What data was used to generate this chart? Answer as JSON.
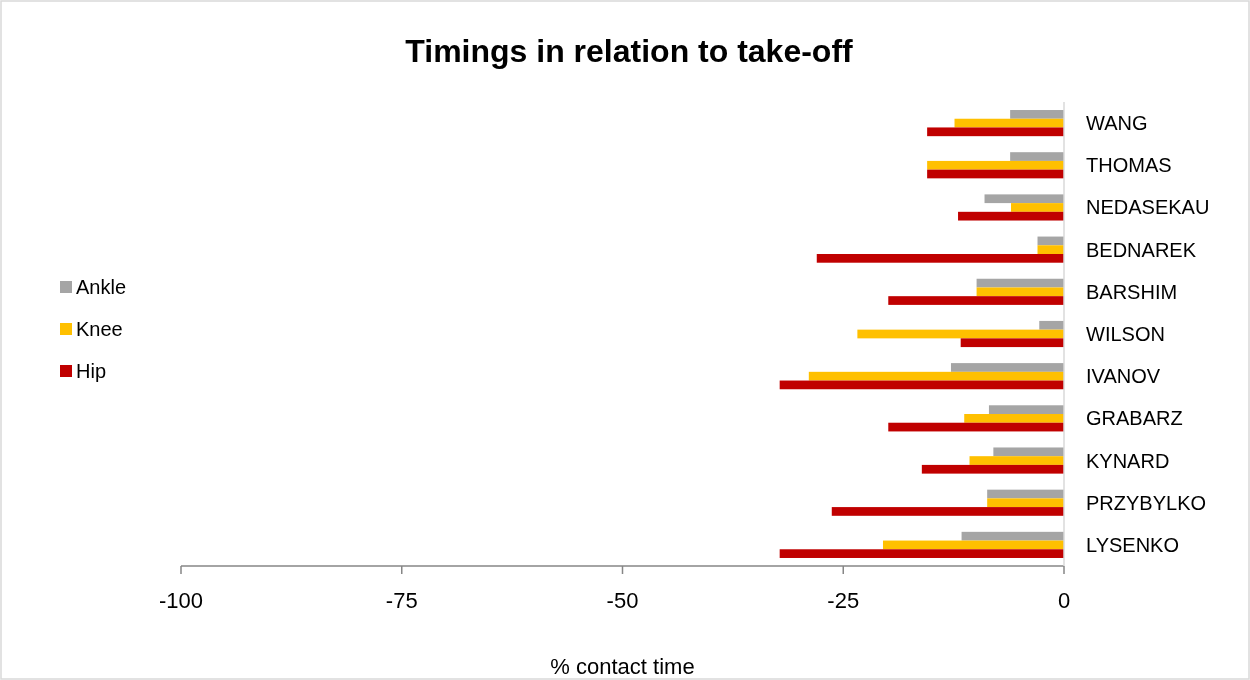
{
  "chart_data": {
    "type": "bar",
    "orientation": "horizontal",
    "title": "Timings in relation to take-off",
    "xlabel": "% contact time",
    "categories": [
      "WANG",
      "THOMAS",
      "NEDASEKAU",
      "BEDNAREK",
      "BARSHIM",
      "WILSON",
      "IVANOV",
      "GRABARZ",
      "KYNARD",
      "PRZYBYLKO",
      "LYSENKO"
    ],
    "series": [
      {
        "name": "Ankle",
        "color": "#a5a5a5",
        "values": [
          -6.1,
          -6.1,
          -9,
          -3,
          -9.9,
          -2.8,
          -12.8,
          -8.5,
          -8,
          -8.7,
          -11.6
        ]
      },
      {
        "name": "Knee",
        "color": "#ffc000",
        "values": [
          -12.4,
          -15.5,
          -6,
          -3,
          -9.9,
          -23.4,
          -28.9,
          -11.3,
          -10.7,
          -8.7,
          -20.5
        ]
      },
      {
        "name": "Hip",
        "color": "#c00000",
        "values": [
          -15.5,
          -15.5,
          -12,
          -28,
          -19.9,
          -11.7,
          -32.2,
          -19.9,
          -16.1,
          -26.3,
          -32.2
        ]
      }
    ],
    "xlim": [
      -100,
      0
    ],
    "xticks": [
      -100,
      -75,
      -50,
      -25,
      0
    ],
    "legend": "left",
    "grid": false
  }
}
